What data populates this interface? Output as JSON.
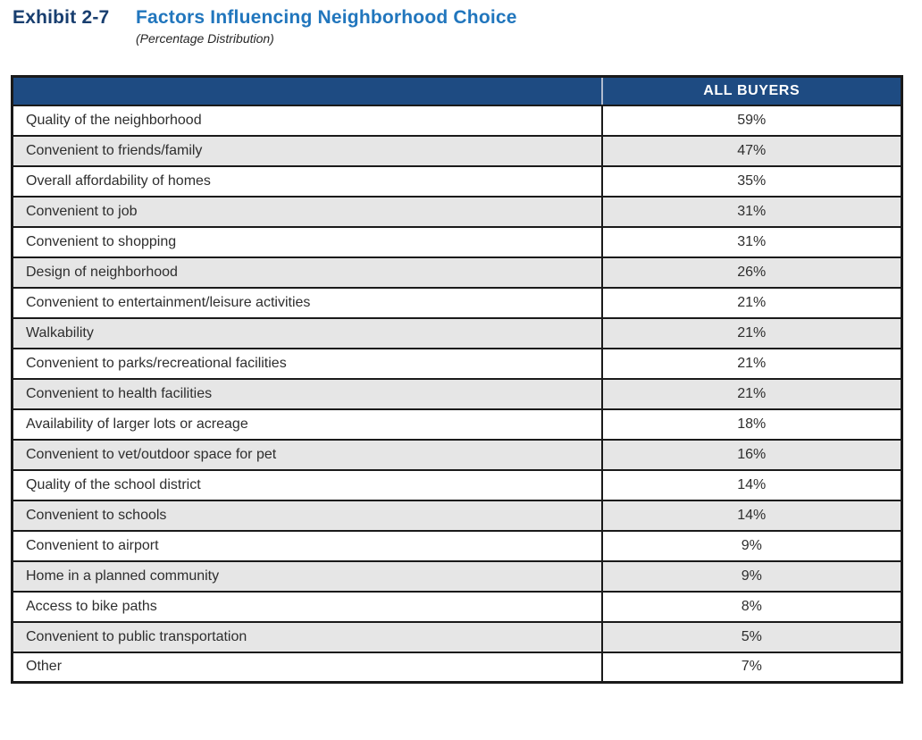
{
  "exhibit": {
    "label": "Exhibit 2-7",
    "title": "Factors Influencing Neighborhood Choice",
    "subtitle": "(Percentage Distribution)"
  },
  "table": {
    "value_column_header": "ALL BUYERS",
    "rows": [
      {
        "factor": "Quality of the neighborhood",
        "value": "59%"
      },
      {
        "factor": "Convenient to friends/family",
        "value": "47%"
      },
      {
        "factor": "Overall affordability of homes",
        "value": "35%"
      },
      {
        "factor": "Convenient to job",
        "value": "31%"
      },
      {
        "factor": "Convenient to shopping",
        "value": "31%"
      },
      {
        "factor": "Design of neighborhood",
        "value": "26%"
      },
      {
        "factor": "Convenient to entertainment/leisure activities",
        "value": "21%"
      },
      {
        "factor": "Walkability",
        "value": "21%"
      },
      {
        "factor": "Convenient to parks/recreational facilities",
        "value": "21%"
      },
      {
        "factor": "Convenient to health facilities",
        "value": "21%"
      },
      {
        "factor": "Availability of larger lots or acreage",
        "value": "18%"
      },
      {
        "factor": "Convenient to vet/outdoor space for pet",
        "value": "16%"
      },
      {
        "factor": "Quality of the school district",
        "value": "14%"
      },
      {
        "factor": "Convenient to schools",
        "value": "14%"
      },
      {
        "factor": "Convenient to airport",
        "value": "9%"
      },
      {
        "factor": "Home in a planned community",
        "value": "9%"
      },
      {
        "factor": "Access to bike paths",
        "value": "8%"
      },
      {
        "factor": "Convenient to public transportation",
        "value": "5%"
      },
      {
        "factor": "Other",
        "value": "7%"
      }
    ]
  },
  "colors": {
    "header_bg": "#1e4b82",
    "title_blue": "#2176bd",
    "label_navy": "#183e6f",
    "row_alt": "#e6e6e6",
    "border": "#1a1a1a",
    "text": "#2e2e2e",
    "header_divider": "#b0bbcf"
  },
  "chart_data": {
    "type": "table",
    "title": "Factors Influencing Neighborhood Choice",
    "subtitle": "(Percentage Distribution)",
    "exhibit_number": "Exhibit 2-7",
    "series_name": "ALL BUYERS",
    "categories": [
      "Quality of the neighborhood",
      "Convenient to friends/family",
      "Overall affordability of homes",
      "Convenient to job",
      "Convenient to shopping",
      "Design of neighborhood",
      "Convenient to entertainment/leisure activities",
      "Walkability",
      "Convenient to parks/recreational facilities",
      "Convenient to health facilities",
      "Availability of larger lots or acreage",
      "Convenient to vet/outdoor space for pet",
      "Quality of the school district",
      "Convenient to schools",
      "Convenient to airport",
      "Home in a planned community",
      "Access to bike paths",
      "Convenient to public transportation",
      "Other"
    ],
    "values": [
      59,
      47,
      35,
      31,
      31,
      26,
      21,
      21,
      21,
      21,
      18,
      16,
      14,
      14,
      9,
      9,
      8,
      5,
      7
    ],
    "unit": "percent"
  }
}
